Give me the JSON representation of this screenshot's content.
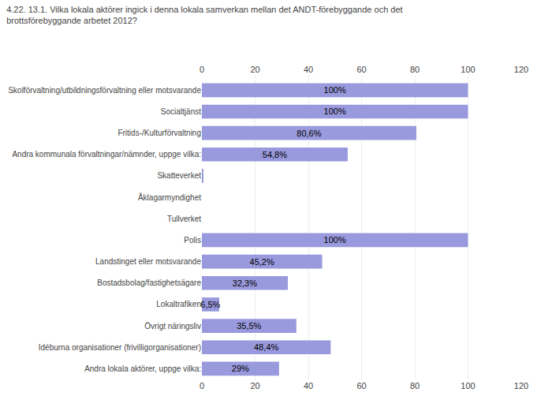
{
  "chart_data": {
    "type": "bar",
    "orientation": "horizontal",
    "title": "4.22. 13.1. Vilka lokala aktörer ingick i denna lokala samverkan mellan det ANDT-förebyggande och det\nbrottsförebyggande arbetet 2012?",
    "categories": [
      "Skolförvaltning/utbildningsförvaltning eller motsvarande",
      "Socialtjänst",
      "Fritids-/Kulturförvaltning",
      "Andra kommunala förvaltningar/nämnder, uppge vilka:",
      "Skatteverket",
      "Åklagarmyndighet",
      "Tullverket",
      "Polis",
      "Landstinget eller motsvarande",
      "Bostadsbolag/fastighetsägare",
      "Lokaltrafiken",
      "Övrigt näringsliv",
      "Idéburna organisationer (frivilligorganisationer)",
      "Andra lokala aktörer, uppge vilka:"
    ],
    "values": [
      100,
      100,
      80.6,
      54.8,
      0.3,
      0,
      0,
      100,
      45.2,
      32.3,
      6.5,
      35.5,
      48.4,
      29
    ],
    "value_labels": [
      "100%",
      "100%",
      "80,6%",
      "54,8%",
      null,
      null,
      null,
      "100%",
      "45,2%",
      "32,3%",
      "6,5%",
      "35,5%",
      "48,4%",
      "29%"
    ],
    "data_labels": true,
    "color": "#9999dd",
    "xlim": [
      0,
      120
    ],
    "xticks": [
      0,
      20,
      40,
      60,
      80,
      100,
      120
    ],
    "grid": true
  }
}
